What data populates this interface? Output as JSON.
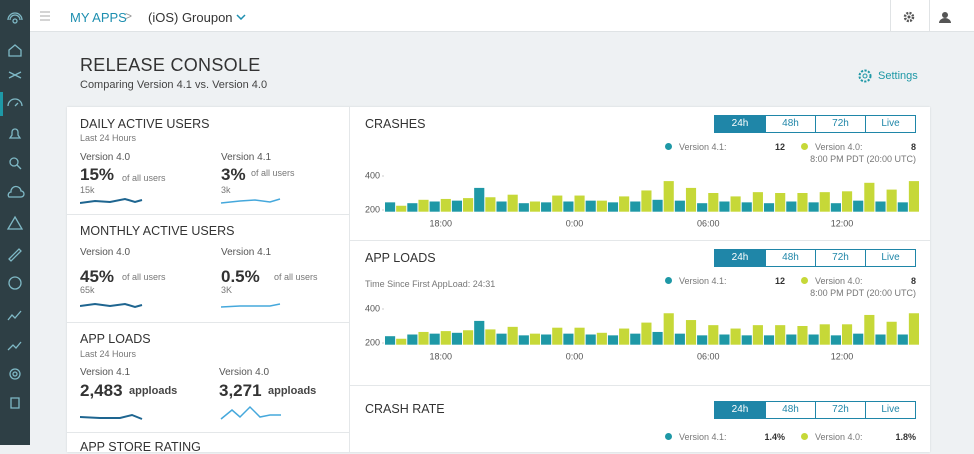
{
  "topbar": {
    "breadcrumb": "MY APPS",
    "app": "(iOS) Groupon"
  },
  "header": {
    "title": "RELEASE CONSOLE",
    "subtitle": "Comparing Version 4.1 vs. Version 4.0",
    "settings": "Settings"
  },
  "summary": [
    {
      "title": "DAILY ACTIVE USERS",
      "period": "Last 24 Hours",
      "metrics": [
        {
          "version": "Version 4.0",
          "value": "15%",
          "unit": "of all users",
          "count": "15k"
        },
        {
          "version": "Version 4.1",
          "value": "3%",
          "unit": "of all users",
          "count": "3k"
        }
      ]
    },
    {
      "title": "MONTHLY ACTIVE USERS",
      "metrics": [
        {
          "version": "Version 4.0",
          "value": "45%",
          "unit": "of all users",
          "count": "65k"
        },
        {
          "version": "Version 4.1",
          "value": "0.5%",
          "unit": "of all users",
          "count": "3K"
        }
      ]
    },
    {
      "title": "APP LOADS",
      "period": "Last 24 Hours",
      "metrics": [
        {
          "version": "Version 4.1",
          "value": "2,483",
          "unit": "apploads"
        },
        {
          "version": "Version 4.0",
          "value": "3,271",
          "unit": "apploads"
        }
      ]
    },
    {
      "title": "APP STORE RATING"
    }
  ],
  "panels": [
    {
      "title": "CRASHES",
      "tabs": [
        "24h",
        "48h",
        "72h",
        "Live"
      ],
      "active_tab": 0,
      "legend": [
        {
          "name": "Version 4.1:",
          "value": "12",
          "color": "#1e98a6"
        },
        {
          "name": "Version 4.0:",
          "value": "8",
          "color": "#c6d838"
        }
      ],
      "timestamp": "8:00 PM PDT (20:00 UTC)",
      "chart": {
        "type": "bar",
        "categories": [
          null,
          null,
          "18:00",
          null,
          null,
          null,
          null,
          null,
          "0:00",
          null,
          null,
          null,
          null,
          null,
          "06:00",
          null,
          null,
          null,
          null,
          null,
          "12:00",
          null,
          null,
          null
        ],
        "series": [
          {
            "name": "Version 4.1",
            "color": "#1e98a6",
            "values": [
              245,
              240,
              250,
              255,
              330,
              250,
              240,
              245,
              250,
              255,
              245,
              250,
              260,
              255,
              240,
              250,
              245,
              240,
              250,
              245,
              240,
              255,
              250,
              245
            ]
          },
          {
            "name": "Version 4.0",
            "color": "#c6d838",
            "values": [
              225,
              260,
              265,
              270,
              275,
              290,
              250,
              285,
              285,
              255,
              280,
              315,
              370,
              330,
              300,
              280,
              305,
              300,
              300,
              305,
              310,
              360,
              320,
              370
            ]
          }
        ],
        "ylim": [
          190,
          420
        ],
        "yticks": [
          200,
          400
        ]
      }
    },
    {
      "title": "APP LOADS",
      "tabs": [
        "24h",
        "48h",
        "72h",
        "Live"
      ],
      "active_tab": 0,
      "note": "Time Since First AppLoad: 24:31",
      "legend": [
        {
          "name": "Version 4.1:",
          "value": "12",
          "color": "#1e98a6"
        },
        {
          "name": "Version 4.0:",
          "value": "8",
          "color": "#c6d838"
        }
      ],
      "timestamp": "8:00 PM PDT (20:00 UTC)",
      "chart": {
        "type": "bar",
        "categories": [
          null,
          null,
          "18:00",
          null,
          null,
          null,
          null,
          null,
          "0:00",
          null,
          null,
          null,
          null,
          null,
          "06:00",
          null,
          null,
          null,
          null,
          null,
          "12:00",
          null,
          null,
          null
        ],
        "series": [
          {
            "name": "Version 4.1",
            "color": "#1e98a6",
            "values": [
              240,
              250,
              255,
              260,
              330,
              255,
              245,
              250,
              255,
              250,
              245,
              255,
              265,
              255,
              245,
              250,
              245,
              245,
              250,
              250,
              245,
              255,
              250,
              250
            ]
          },
          {
            "name": "Version 4.0",
            "color": "#c6d838",
            "values": [
              225,
              265,
              270,
              275,
              280,
              295,
              255,
              290,
              290,
              260,
              285,
              320,
              375,
              335,
              305,
              285,
              305,
              305,
              300,
              310,
              310,
              365,
              325,
              375
            ]
          }
        ],
        "ylim": [
          190,
          420
        ],
        "yticks": [
          200,
          400
        ]
      }
    },
    {
      "title": "CRASH RATE",
      "tabs": [
        "24h",
        "48h",
        "72h",
        "Live"
      ],
      "active_tab": 0,
      "legend": [
        {
          "name": "Version 4.1:",
          "value": "1.4%",
          "color": "#1e98a6"
        },
        {
          "name": "Version 4.0:",
          "value": "1.8%",
          "color": "#c6d838"
        }
      ]
    }
  ]
}
